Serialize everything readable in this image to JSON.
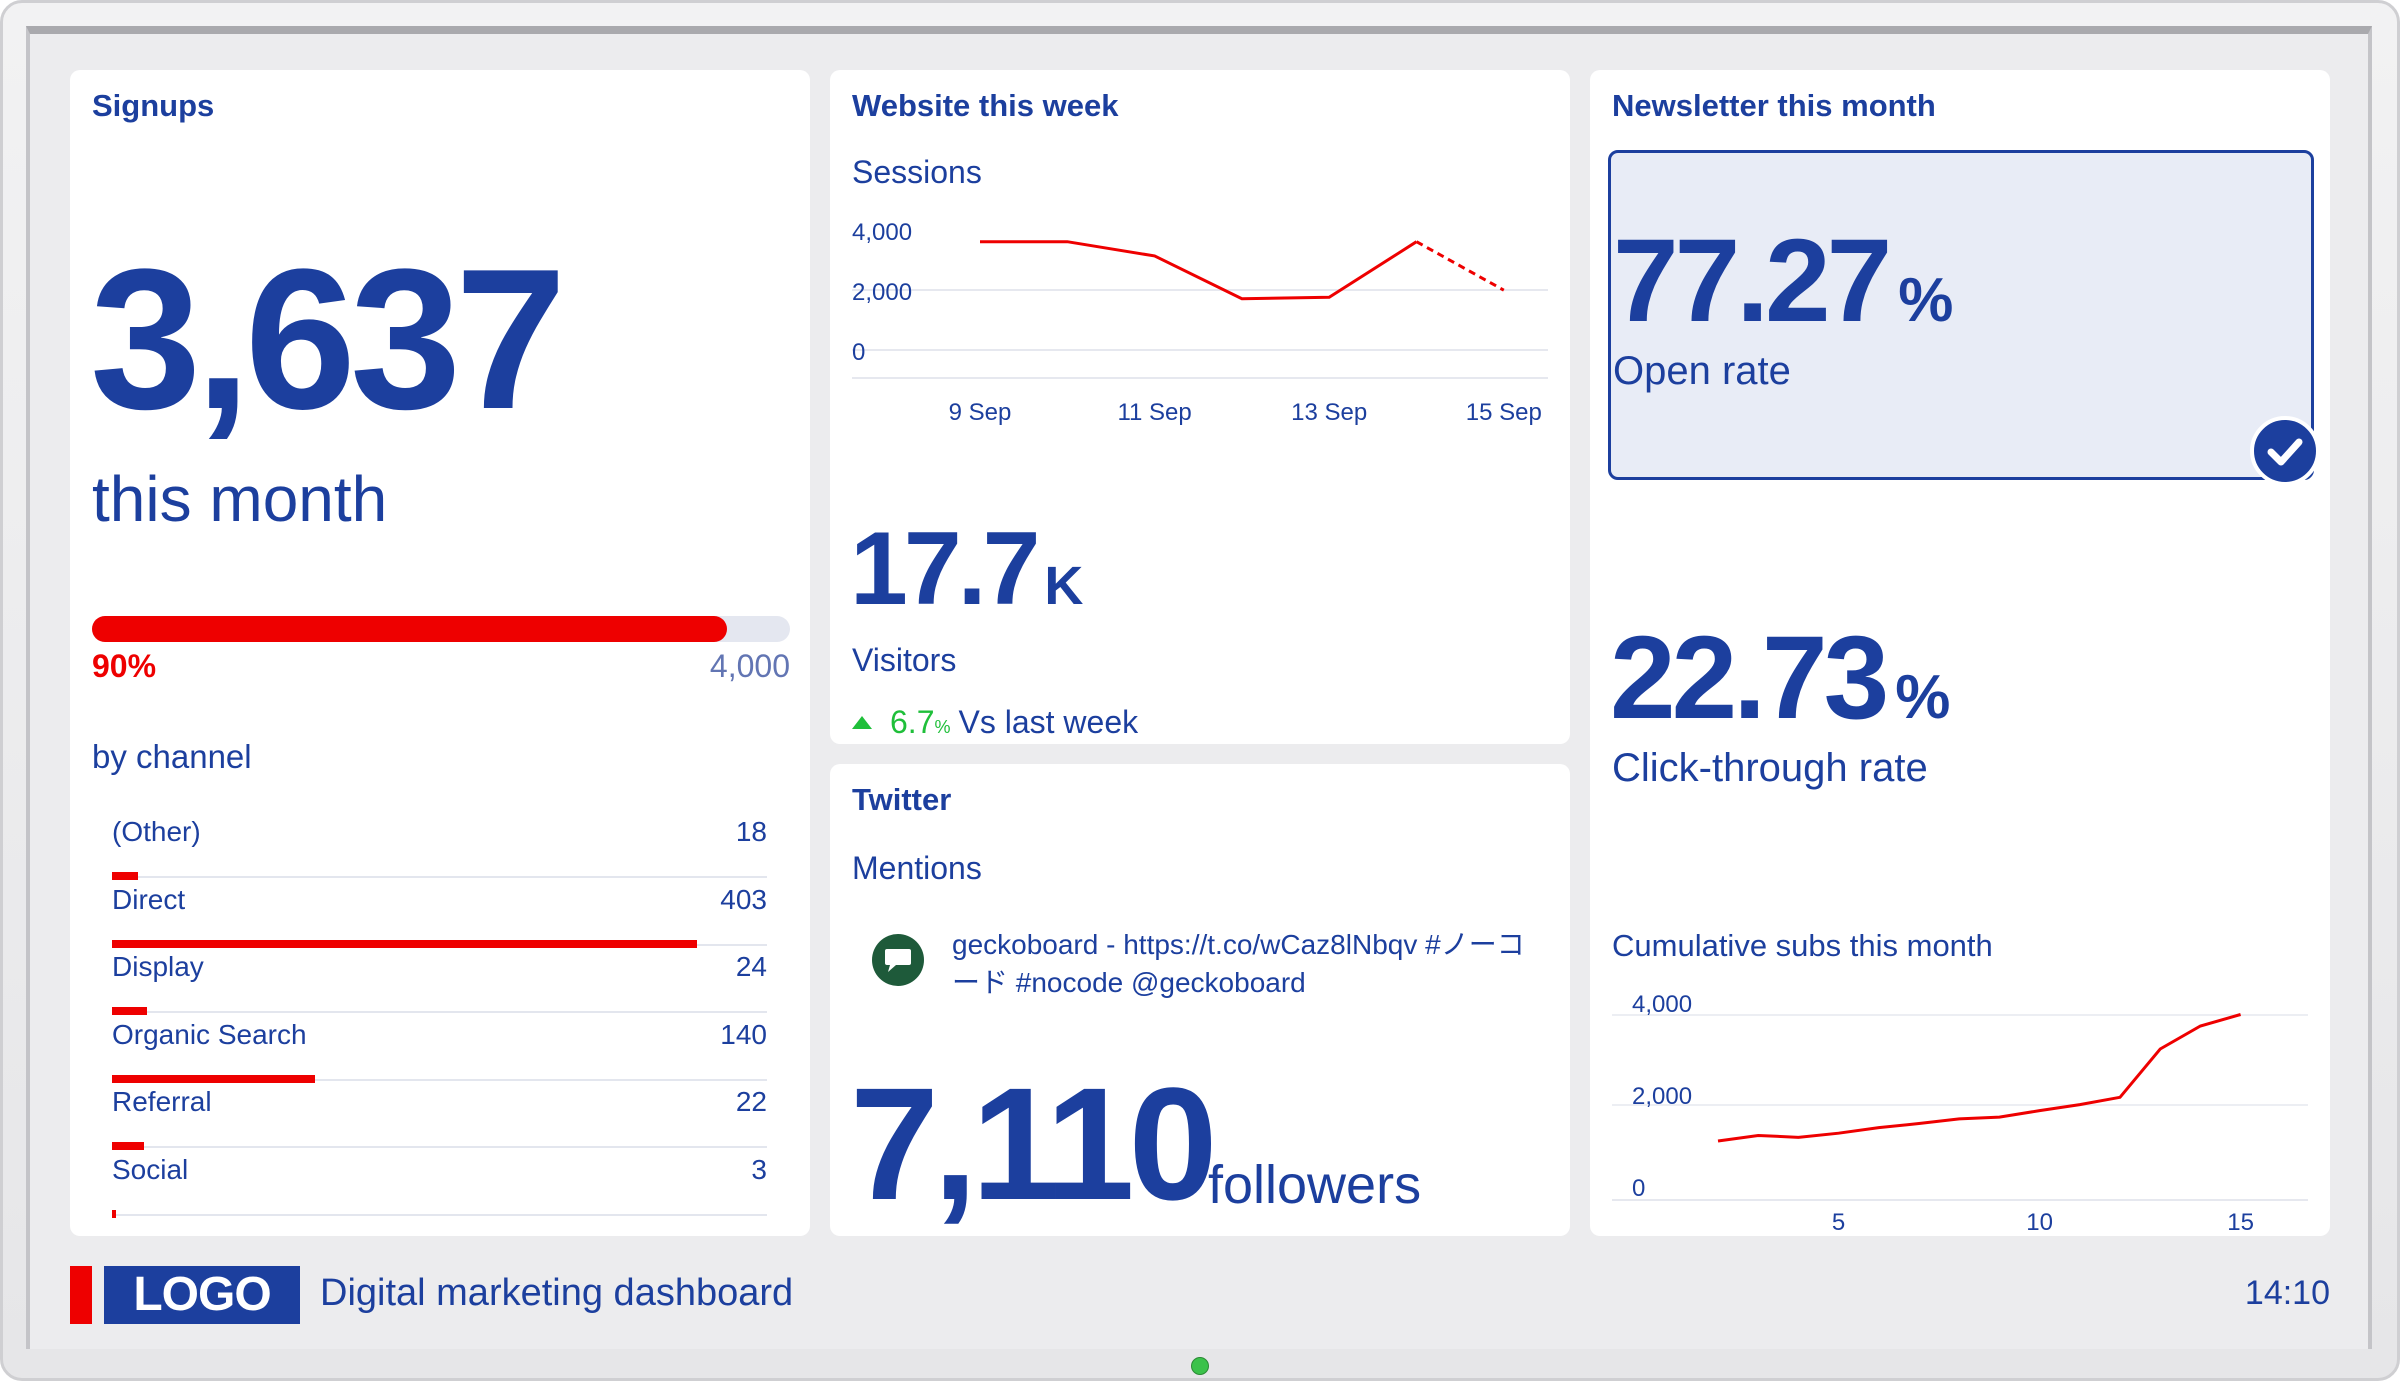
{
  "signups": {
    "title": "Signups",
    "value": "3,637",
    "subtitle": "this month",
    "progress_percent_label": "90%",
    "progress_fraction": 0.9093,
    "goal": "4,000",
    "by_channel_label": "by channel",
    "channels": [
      {
        "name": "(Other)",
        "value": 18
      },
      {
        "name": "Direct",
        "value": 403
      },
      {
        "name": "Display",
        "value": 24
      },
      {
        "name": "Organic Search",
        "value": 140
      },
      {
        "name": "Referral",
        "value": 22
      },
      {
        "name": "Social",
        "value": 3
      }
    ]
  },
  "website": {
    "title": "Website this week",
    "sessions_label": "Sessions",
    "visitors_value": "17.7",
    "visitors_unit": "K",
    "visitors_label": "Visitors",
    "change_value": "6.7",
    "change_unit": "%",
    "change_label": "Vs last week"
  },
  "twitter": {
    "title": "Twitter",
    "mentions_label": "Mentions",
    "mention_text": "geckoboard - https://t.co/wCaz8lNbqv #ノーコード #nocode @geckoboard",
    "followers_value": "7,110",
    "followers_label": "followers"
  },
  "newsletter": {
    "title": "Newsletter this month",
    "open_rate_value": "77.27",
    "open_rate_unit": "%",
    "open_rate_label": "Open rate",
    "ctr_value": "22.73",
    "ctr_unit": "%",
    "ctr_label": "Click-through rate",
    "cumulative_label": "Cumulative subs this month"
  },
  "footer": {
    "logo": "LOGO",
    "title": "Digital marketing dashboard",
    "time": "14:10"
  },
  "colors": {
    "primary": "#1c3f9e",
    "accent_red": "#ee0000",
    "positive_green": "#1fbf3a",
    "highlight_bg": "#e8ecf6"
  },
  "icons": {
    "check": "check-circle-icon",
    "arrow_up": "triangle-up-icon",
    "avatar": "speech-bubble-avatar-icon"
  },
  "chart_data": [
    {
      "type": "line",
      "ylabel": "Sessions",
      "x": [
        "9 Sep",
        "10 Sep",
        "11 Sep",
        "12 Sep",
        "13 Sep",
        "14 Sep",
        "15 Sep"
      ],
      "x_tick_labels": [
        "9 Sep",
        "11 Sep",
        "13 Sep",
        "15 Sep"
      ],
      "values": [
        3800,
        3800,
        3300,
        1800,
        1850,
        3800,
        2100
      ],
      "ylim": [
        0,
        4000
      ],
      "y_ticks": [
        "4,000",
        "2,000",
        "0"
      ],
      "last_segment_dashed": true
    },
    {
      "type": "line",
      "ylabel": "Cumulative subs this month",
      "x": [
        2,
        3,
        4,
        5,
        6,
        7,
        8,
        9,
        10,
        11,
        12,
        13,
        14,
        15
      ],
      "values": [
        1000,
        1120,
        1080,
        1170,
        1290,
        1380,
        1480,
        1520,
        1660,
        1790,
        1950,
        3000,
        3500,
        3750
      ],
      "ylim": [
        0,
        4000
      ],
      "y_ticks": [
        "4,000",
        "2,000",
        "0"
      ],
      "x_ticks": [
        "5",
        "10",
        "15"
      ]
    }
  ]
}
